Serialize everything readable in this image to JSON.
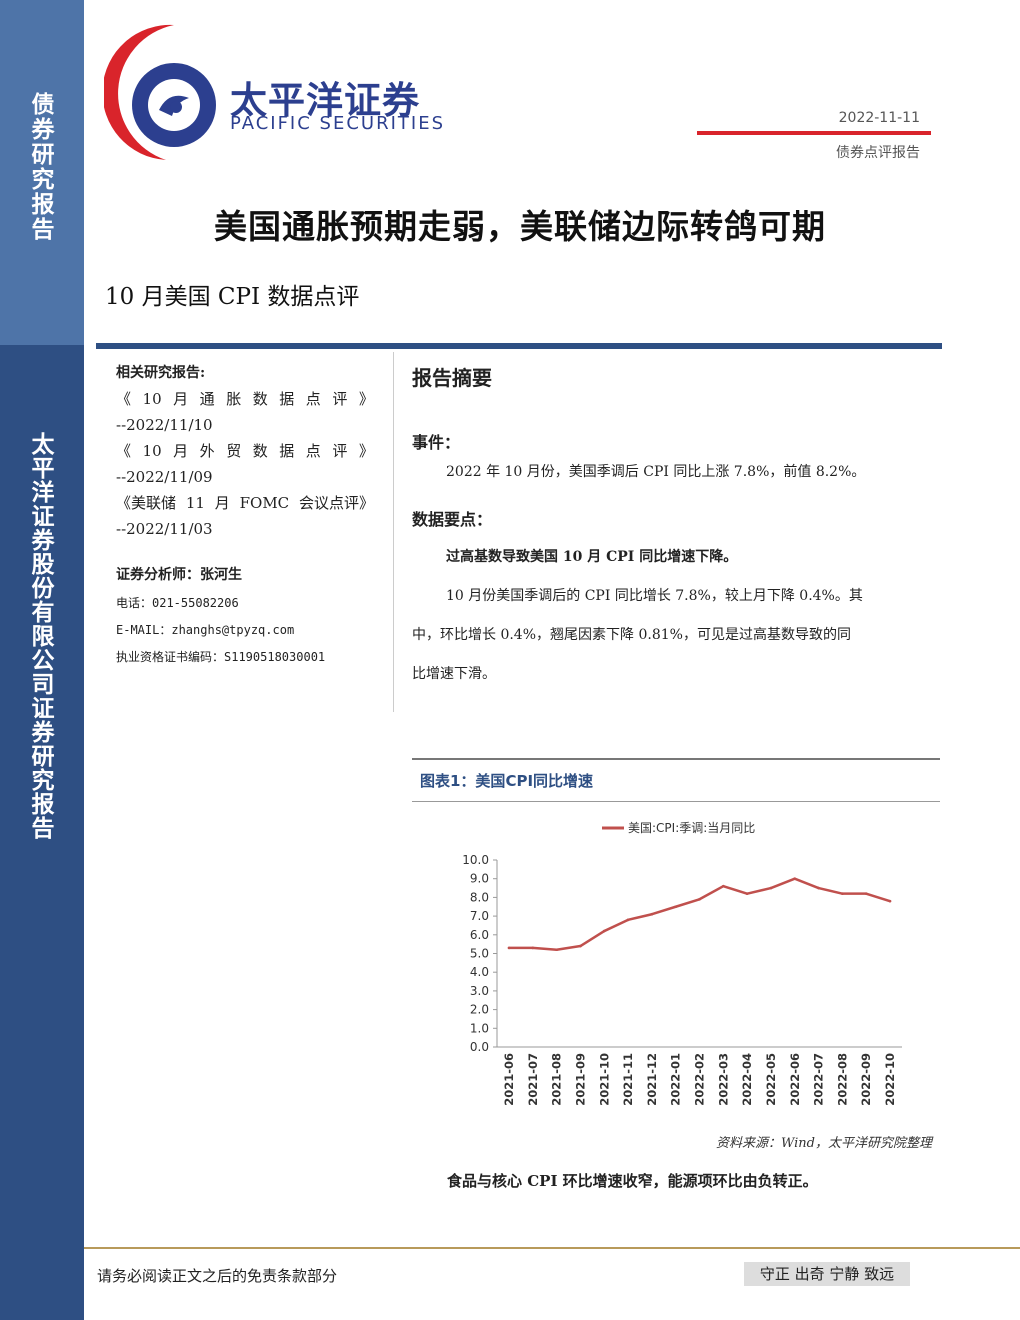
{
  "sidebar": {
    "top_text": "债券研究报告",
    "bottom_text": "太平洋证券股份有限公司证券研究报告"
  },
  "header": {
    "brand_cn": "太平洋证券",
    "brand_en": "PACIFIC SECURITIES",
    "date": "2022-11-11",
    "report_type": "债券点评报告"
  },
  "title": {
    "main": "美国通胀预期走弱，美联储边际转鸽可期",
    "sub": "10 月美国 CPI 数据点评"
  },
  "left": {
    "related_label": "相关研究报告:",
    "related": [
      {
        "title_parts": [
          "《",
          "10",
          "月",
          "通",
          "胀",
          "数",
          "据",
          "点",
          "评",
          "》"
        ],
        "date": "--2022/11/10"
      },
      {
        "title_parts": [
          "《",
          "10",
          "月",
          "外",
          "贸",
          "数",
          "据",
          "点",
          "评",
          "》"
        ],
        "date": "--2022/11/09"
      },
      {
        "title_parts": [
          "《美联储",
          "11",
          "月",
          "FOMC",
          "会议点评》"
        ],
        "date": "--2022/11/03"
      }
    ],
    "analyst": "证券分析师：张河生",
    "phone": "电话：021-55082206",
    "email": "E-MAIL：zhanghs@tpyzq.com",
    "cert": "执业资格证书编码：S1190518030001"
  },
  "right": {
    "summary_heading": "报告摘要",
    "event_heading": "事件：",
    "event_text": "2022 年 10 月份，美国季调后 CPI 同比上涨 7.8%，前值 8.2%。",
    "points_heading": "数据要点：",
    "point1_title": "过高基数导致美国 10 月 CPI 同比增速下降。",
    "point1_line1": "10 月份美国季调后的 CPI 同比增长 7.8%，较上月下降 0.4%。其",
    "point1_line2": "中，环比增长 0.4%，翘尾因素下降 0.81%，可见是过高基数导致的同",
    "point1_line3": "比增速下滑。"
  },
  "figure": {
    "title": "图表1：美国CPI同比增速",
    "source": "资料来源：Wind，太平洋研究院整理",
    "note": "食品与核心 CPI 环比增速收窄，能源项环比由负转正。"
  },
  "chart_data": {
    "type": "line",
    "categories": [
      "2021-06",
      "2021-07",
      "2021-08",
      "2021-09",
      "2021-10",
      "2021-11",
      "2021-12",
      "2022-01",
      "2022-02",
      "2022-03",
      "2022-04",
      "2022-05",
      "2022-06",
      "2022-07",
      "2022-08",
      "2022-09",
      "2022-10"
    ],
    "series": [
      {
        "name": "美国:CPI:季调:当月同比",
        "values": [
          5.3,
          5.3,
          5.2,
          5.4,
          6.2,
          6.8,
          7.1,
          7.5,
          7.9,
          8.6,
          8.2,
          8.5,
          9.0,
          8.5,
          8.2,
          8.2,
          7.8
        ],
        "color": "#c0504d"
      }
    ],
    "yticks": [
      "0.0",
      "1.0",
      "2.0",
      "3.0",
      "4.0",
      "5.0",
      "6.0",
      "7.0",
      "8.0",
      "9.0",
      "10.0"
    ],
    "ylim": [
      0,
      10
    ],
    "legend_position": "top"
  },
  "footer": {
    "disclaimer": "请务必阅读正文之后的免责条款部分",
    "motto": "守正 出奇 宁静 致远"
  }
}
